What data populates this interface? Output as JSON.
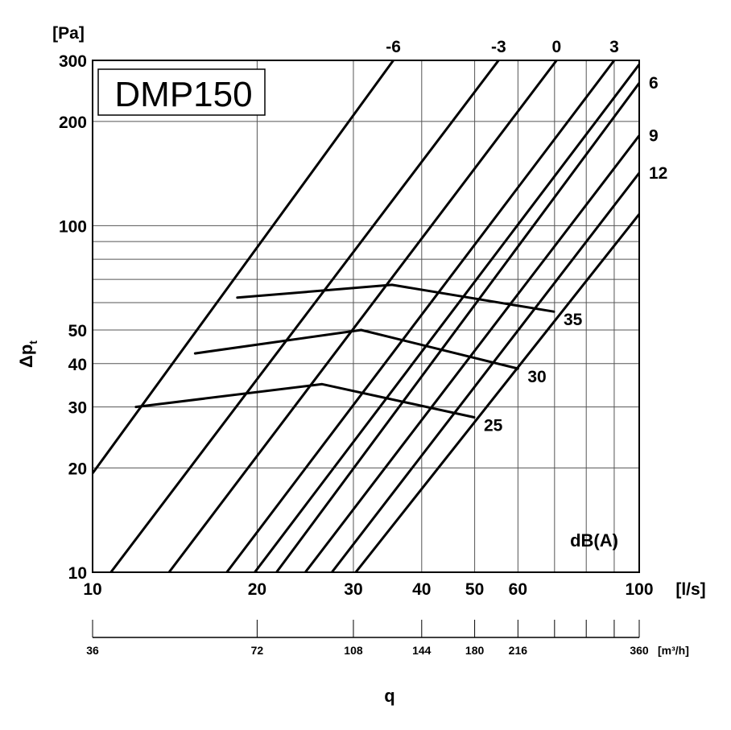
{
  "chart_data": {
    "type": "line",
    "title": "DMP150",
    "xlabel": "q",
    "ylabel": "Δp",
    "ylabel_sub": "t",
    "x_scale": "log",
    "y_scale": "log",
    "xlim": [
      10,
      100
    ],
    "ylim": [
      10,
      300
    ],
    "grid": true,
    "x_unit": "[l/s]",
    "y_unit": "[Pa]",
    "x2_unit": "[m³/h]",
    "x_ticks": [
      10,
      20,
      30,
      40,
      50,
      60,
      100
    ],
    "x_tick_labels": [
      "10",
      "20",
      "30",
      "40",
      "50",
      "60",
      "100"
    ],
    "y_ticks": [
      10,
      20,
      30,
      40,
      50,
      100,
      200,
      300
    ],
    "y_tick_labels": [
      "10",
      "20",
      "30",
      "40",
      "50",
      "100",
      "200",
      "300"
    ],
    "x2_ticks": [
      10,
      20,
      30,
      40,
      50,
      60,
      100
    ],
    "x2_tick_labels": [
      "36",
      "72",
      "108",
      "144",
      "180",
      "216",
      "360"
    ],
    "series_label_title": "dB(A)",
    "series": [
      {
        "name": "-6",
        "points": [
          [
            10,
            19.3
          ],
          [
            35.5,
            300
          ]
        ]
      },
      {
        "name": "-3",
        "points": [
          [
            10.8,
            10
          ],
          [
            55.3,
            300
          ]
        ]
      },
      {
        "name": "0",
        "points": [
          [
            13.8,
            10
          ],
          [
            70.6,
            300
          ]
        ]
      },
      {
        "name": "3",
        "points": [
          [
            17.6,
            10
          ],
          [
            90.0,
            300
          ]
        ]
      },
      {
        "name": "6",
        "points": [
          [
            21.7,
            10
          ],
          [
            100,
            258
          ]
        ]
      },
      {
        "name": "9",
        "points": [
          [
            24.5,
            10
          ],
          [
            100,
            182
          ]
        ]
      },
      {
        "name": "12",
        "points": [
          [
            27.4,
            10
          ],
          [
            100,
            142
          ]
        ]
      },
      {
        "name": "",
        "points": [
          [
            30.3,
            10
          ],
          [
            100,
            108
          ]
        ]
      },
      {
        "name": "",
        "points": [
          [
            19.8,
            10
          ],
          [
            100,
            292
          ]
        ]
      }
    ],
    "sound_lines": [
      {
        "name": "35",
        "points": [
          [
            18.4,
            62
          ],
          [
            35.3,
            67.5
          ],
          [
            69.8,
            56.5
          ]
        ]
      },
      {
        "name": "30",
        "points": [
          [
            15.4,
            42.8
          ],
          [
            31.0,
            50.0
          ],
          [
            60.0,
            38.7
          ]
        ]
      },
      {
        "name": "25",
        "points": [
          [
            12.0,
            30.0
          ],
          [
            26.3,
            34.9
          ],
          [
            49.9,
            28.0
          ]
        ]
      }
    ]
  }
}
